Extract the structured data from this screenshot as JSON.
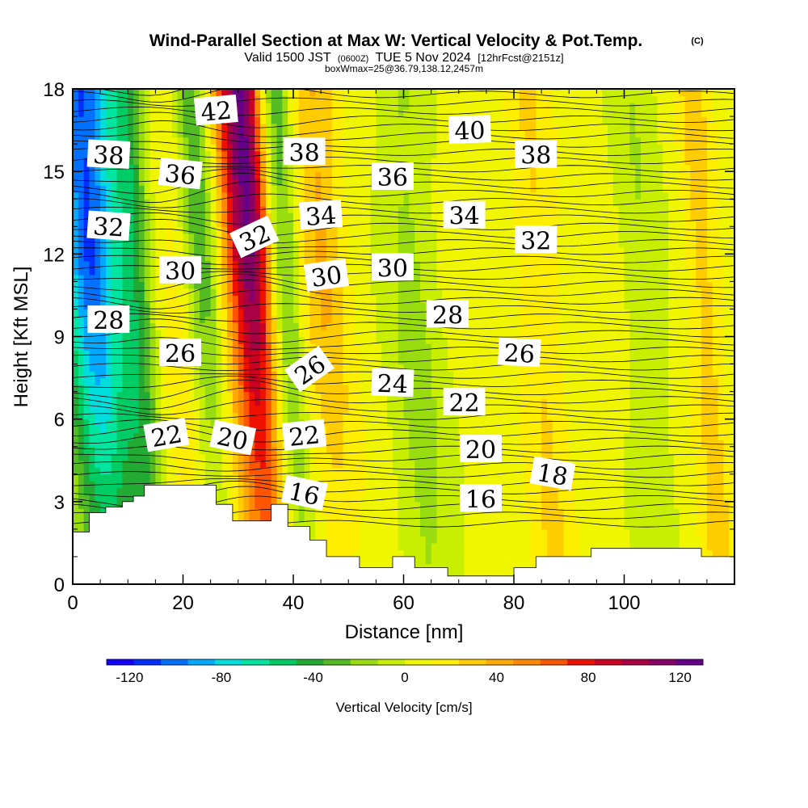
{
  "header": {
    "title_main": "Wind-Parallel Section at Max W: Vertical Velocity & Pot.Temp.",
    "title_copyright": "(C)",
    "valid_prefix": "Valid 1500 JST",
    "valid_utc": "(0600Z)",
    "valid_date": "TUE 5 Nov 2024",
    "forecast_info": "[12hrFcst@2151z]",
    "box_info": "boxWmax=25@36.79,138.12,2457m"
  },
  "chart_data": {
    "type": "heatmap",
    "xlabel": "Distance [nm]",
    "ylabel": "Height [Kft MSL]",
    "xlim": [
      0,
      120
    ],
    "ylim": [
      0,
      18
    ],
    "x_ticks": [
      0,
      20,
      40,
      60,
      80,
      100
    ],
    "y_ticks": [
      0,
      3,
      6,
      9,
      12,
      15,
      18
    ],
    "colorbar": {
      "label": "Vertical Velocity [cm/s]",
      "range": [
        -130,
        130
      ],
      "tick_values": [
        -120,
        -80,
        -40,
        0,
        40,
        80,
        120
      ],
      "tick_labels": [
        "-120",
        "-80",
        "-40",
        "0",
        "40",
        "80",
        "120"
      ],
      "colors": [
        "#1400ff",
        "#0030ff",
        "#0070ff",
        "#00aaff",
        "#00dddd",
        "#00e6a0",
        "#00cc66",
        "#22aa33",
        "#55bb22",
        "#99dd11",
        "#c8ee00",
        "#f0f500",
        "#ffee00",
        "#ffcc00",
        "#ffaa00",
        "#ff8800",
        "#ff5500",
        "#ee1100",
        "#cc0022",
        "#aa0044",
        "#880066",
        "#660088"
      ]
    },
    "vertical_velocity_bands": [
      {
        "x": 5,
        "w": 18,
        "v": -45
      },
      {
        "x": 4,
        "w": 10,
        "v": -75
      },
      {
        "x": 12,
        "w": 6,
        "v": -30
      },
      {
        "x": 20,
        "w": 10,
        "v": 20
      },
      {
        "x": 24,
        "w": 7,
        "v": -50
      },
      {
        "x": 32,
        "w": 9,
        "v": 90
      },
      {
        "x": 34,
        "w": 6,
        "v": 40
      },
      {
        "x": 39,
        "w": 6,
        "v": -45
      },
      {
        "x": 46,
        "w": 9,
        "v": 35
      },
      {
        "x": 62,
        "w": 10,
        "v": -20
      },
      {
        "x": 85,
        "w": 8,
        "v": 20
      },
      {
        "x": 104,
        "w": 8,
        "v": -15
      },
      {
        "x": 115,
        "w": 6,
        "v": 25
      }
    ],
    "terrain": [
      [
        0,
        1.9
      ],
      [
        3,
        1.9
      ],
      [
        3,
        2.6
      ],
      [
        6,
        2.6
      ],
      [
        6,
        2.8
      ],
      [
        9,
        2.8
      ],
      [
        9,
        3.0
      ],
      [
        11,
        3.0
      ],
      [
        11,
        3.2
      ],
      [
        13,
        3.2
      ],
      [
        13,
        3.6
      ],
      [
        26,
        3.6
      ],
      [
        26,
        2.9
      ],
      [
        29,
        2.9
      ],
      [
        29,
        2.3
      ],
      [
        36,
        2.3
      ],
      [
        36,
        2.9
      ],
      [
        39,
        2.9
      ],
      [
        39,
        2.1
      ],
      [
        43,
        2.1
      ],
      [
        43,
        1.6
      ],
      [
        46,
        1.6
      ],
      [
        46,
        1.0
      ],
      [
        52,
        1.0
      ],
      [
        52,
        0.6
      ],
      [
        58,
        0.6
      ],
      [
        58,
        1.0
      ],
      [
        62,
        1.0
      ],
      [
        62,
        0.6
      ],
      [
        68,
        0.6
      ],
      [
        68,
        0.3
      ],
      [
        80,
        0.3
      ],
      [
        80,
        0.6
      ],
      [
        84,
        0.6
      ],
      [
        84,
        1.0
      ],
      [
        94,
        1.0
      ],
      [
        94,
        1.3
      ],
      [
        114,
        1.3
      ],
      [
        114,
        1.0
      ],
      [
        120,
        1.0
      ]
    ],
    "contour_labels": [
      {
        "text": "42",
        "x": 26,
        "y": 17.2,
        "rot": -5
      },
      {
        "text": "38",
        "x": 6.5,
        "y": 15.6,
        "rot": 3
      },
      {
        "text": "36",
        "x": 19.5,
        "y": 14.9,
        "rot": 6
      },
      {
        "text": "38",
        "x": 42,
        "y": 15.7,
        "rot": 0
      },
      {
        "text": "40",
        "x": 72,
        "y": 16.5,
        "rot": -2
      },
      {
        "text": "38",
        "x": 84,
        "y": 15.6,
        "rot": 0
      },
      {
        "text": "36",
        "x": 58,
        "y": 14.8,
        "rot": 0
      },
      {
        "text": "34",
        "x": 45,
        "y": 13.4,
        "rot": -4
      },
      {
        "text": "34",
        "x": 71,
        "y": 13.4,
        "rot": 0
      },
      {
        "text": "32",
        "x": 6.5,
        "y": 13.0,
        "rot": 4
      },
      {
        "text": "32",
        "x": 33,
        "y": 12.6,
        "rot": -25
      },
      {
        "text": "32",
        "x": 84,
        "y": 12.5,
        "rot": 0
      },
      {
        "text": "30",
        "x": 19.5,
        "y": 11.4,
        "rot": 0
      },
      {
        "text": "30",
        "x": 46,
        "y": 11.2,
        "rot": -8
      },
      {
        "text": "30",
        "x": 58,
        "y": 11.5,
        "rot": 0
      },
      {
        "text": "28",
        "x": 6.5,
        "y": 9.6,
        "rot": 0
      },
      {
        "text": "28",
        "x": 68,
        "y": 9.8,
        "rot": 0
      },
      {
        "text": "26",
        "x": 19.5,
        "y": 8.4,
        "rot": 0
      },
      {
        "text": "26",
        "x": 43,
        "y": 7.8,
        "rot": -35
      },
      {
        "text": "26",
        "x": 81,
        "y": 8.4,
        "rot": 3
      },
      {
        "text": "24",
        "x": 58,
        "y": 7.3,
        "rot": 2
      },
      {
        "text": "22",
        "x": 71,
        "y": 6.6,
        "rot": 0
      },
      {
        "text": "22",
        "x": 17,
        "y": 5.4,
        "rot": -10
      },
      {
        "text": "20",
        "x": 29,
        "y": 5.3,
        "rot": 12
      },
      {
        "text": "22",
        "x": 42,
        "y": 5.4,
        "rot": -6
      },
      {
        "text": "20",
        "x": 74,
        "y": 4.9,
        "rot": 0
      },
      {
        "text": "18",
        "x": 87,
        "y": 4.0,
        "rot": 10
      },
      {
        "text": "16",
        "x": 42,
        "y": 3.3,
        "rot": 12
      },
      {
        "text": "16",
        "x": 74,
        "y": 3.1,
        "rot": 0
      }
    ]
  }
}
